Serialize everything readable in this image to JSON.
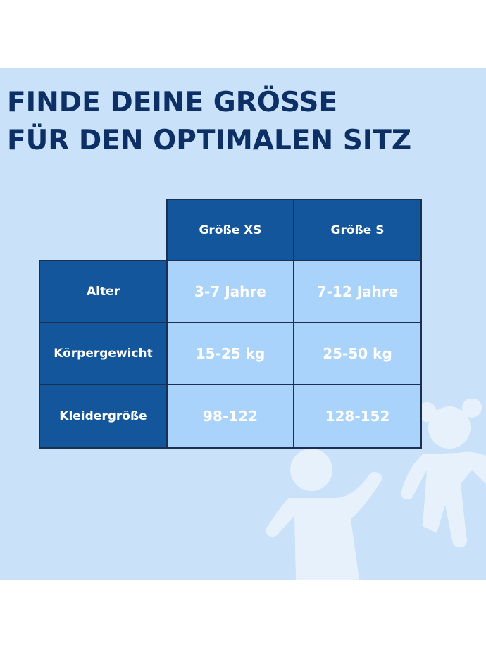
{
  "title": {
    "line1": "FINDE DEINE GRÖSSE",
    "line2": "FÜR DEN OPTIMALEN SITZ"
  },
  "table": {
    "columns": [
      "Größe XS",
      "Größe S"
    ],
    "rows": [
      {
        "label": "Alter",
        "values": [
          "3-7 Jahre",
          "7-12 Jahre"
        ]
      },
      {
        "label": "Körpergewicht",
        "values": [
          "15-25 kg",
          "25-50 kg"
        ]
      },
      {
        "label": "Kleidergröße",
        "values": [
          "98-122",
          "128-152"
        ]
      }
    ]
  },
  "colors": {
    "background_panel": "#c9e1f9",
    "title_text": "#0c2f66",
    "header_cell": "#14569b",
    "value_cell": "#a9d3fb",
    "cell_border": "#1b2f52"
  },
  "icons": {
    "decoration": "children-silhouette-icon"
  }
}
